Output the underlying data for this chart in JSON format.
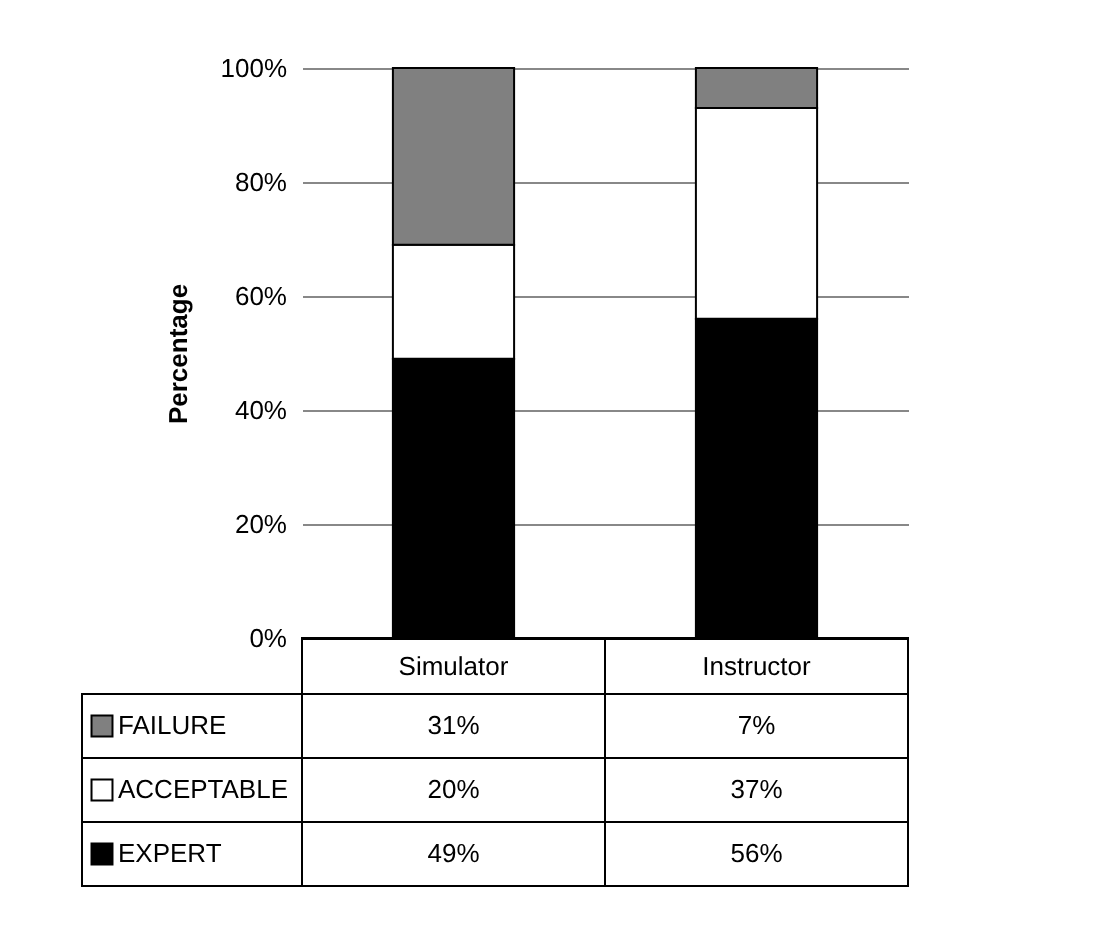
{
  "chart_data": {
    "type": "bar",
    "stacked": true,
    "ylabel": "Percentage",
    "categories": [
      "Simulator",
      "Instructor"
    ],
    "series": [
      {
        "name": "EXPERT",
        "color": "#000000",
        "values": [
          49,
          56
        ],
        "value_labels": [
          "49%",
          "56%"
        ]
      },
      {
        "name": "ACCEPTABLE",
        "color": "#ffffff",
        "values": [
          20,
          37
        ],
        "value_labels": [
          "20%",
          "37%"
        ]
      },
      {
        "name": "FAILURE",
        "color": "#808080",
        "values": [
          31,
          7
        ],
        "value_labels": [
          "31%",
          "7%"
        ]
      }
    ],
    "ylim": [
      0,
      100
    ],
    "yticks": [
      {
        "value": 0,
        "label": "0%"
      },
      {
        "value": 20,
        "label": "20%"
      },
      {
        "value": 40,
        "label": "40%"
      },
      {
        "value": 60,
        "label": "60%"
      },
      {
        "value": 80,
        "label": "80%"
      },
      {
        "value": 100,
        "label": "100%"
      }
    ],
    "grid": "y",
    "legend": "bottom"
  }
}
